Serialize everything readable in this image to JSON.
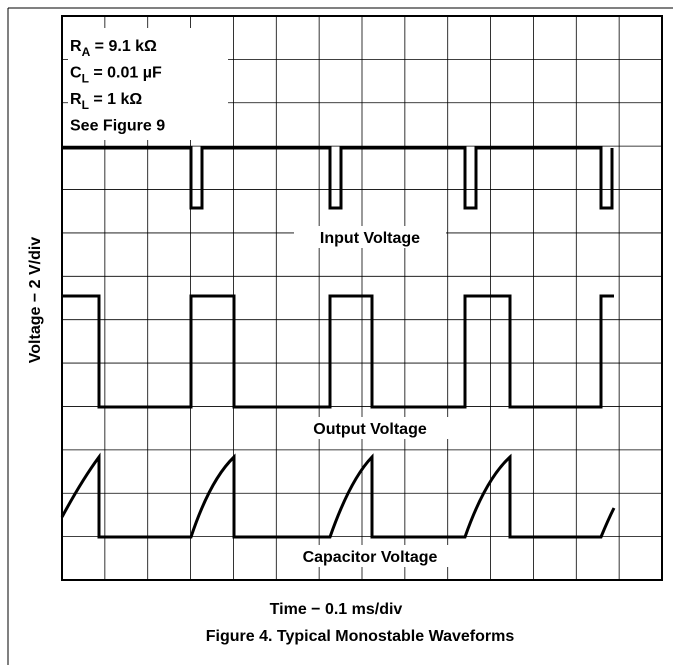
{
  "legend": [
    {
      "symbol": "R",
      "sub": "A",
      "text": " = 9.1 kΩ"
    },
    {
      "symbol": "C",
      "sub": "L",
      "text": " = 0.01 µF"
    },
    {
      "symbol": "R",
      "sub": "L",
      "text": " = 1 kΩ"
    },
    {
      "text": "See Figure 9"
    }
  ],
  "traces": {
    "input": "Input Voltage",
    "output": "Output Voltage",
    "capacitor": "Capacitor Voltage"
  },
  "y_axis_label": "Voltage − 2 V/div",
  "x_axis_label": "Time − 0.1 ms/div",
  "caption": "Figure 4. Typical Monostable Waveforms"
}
